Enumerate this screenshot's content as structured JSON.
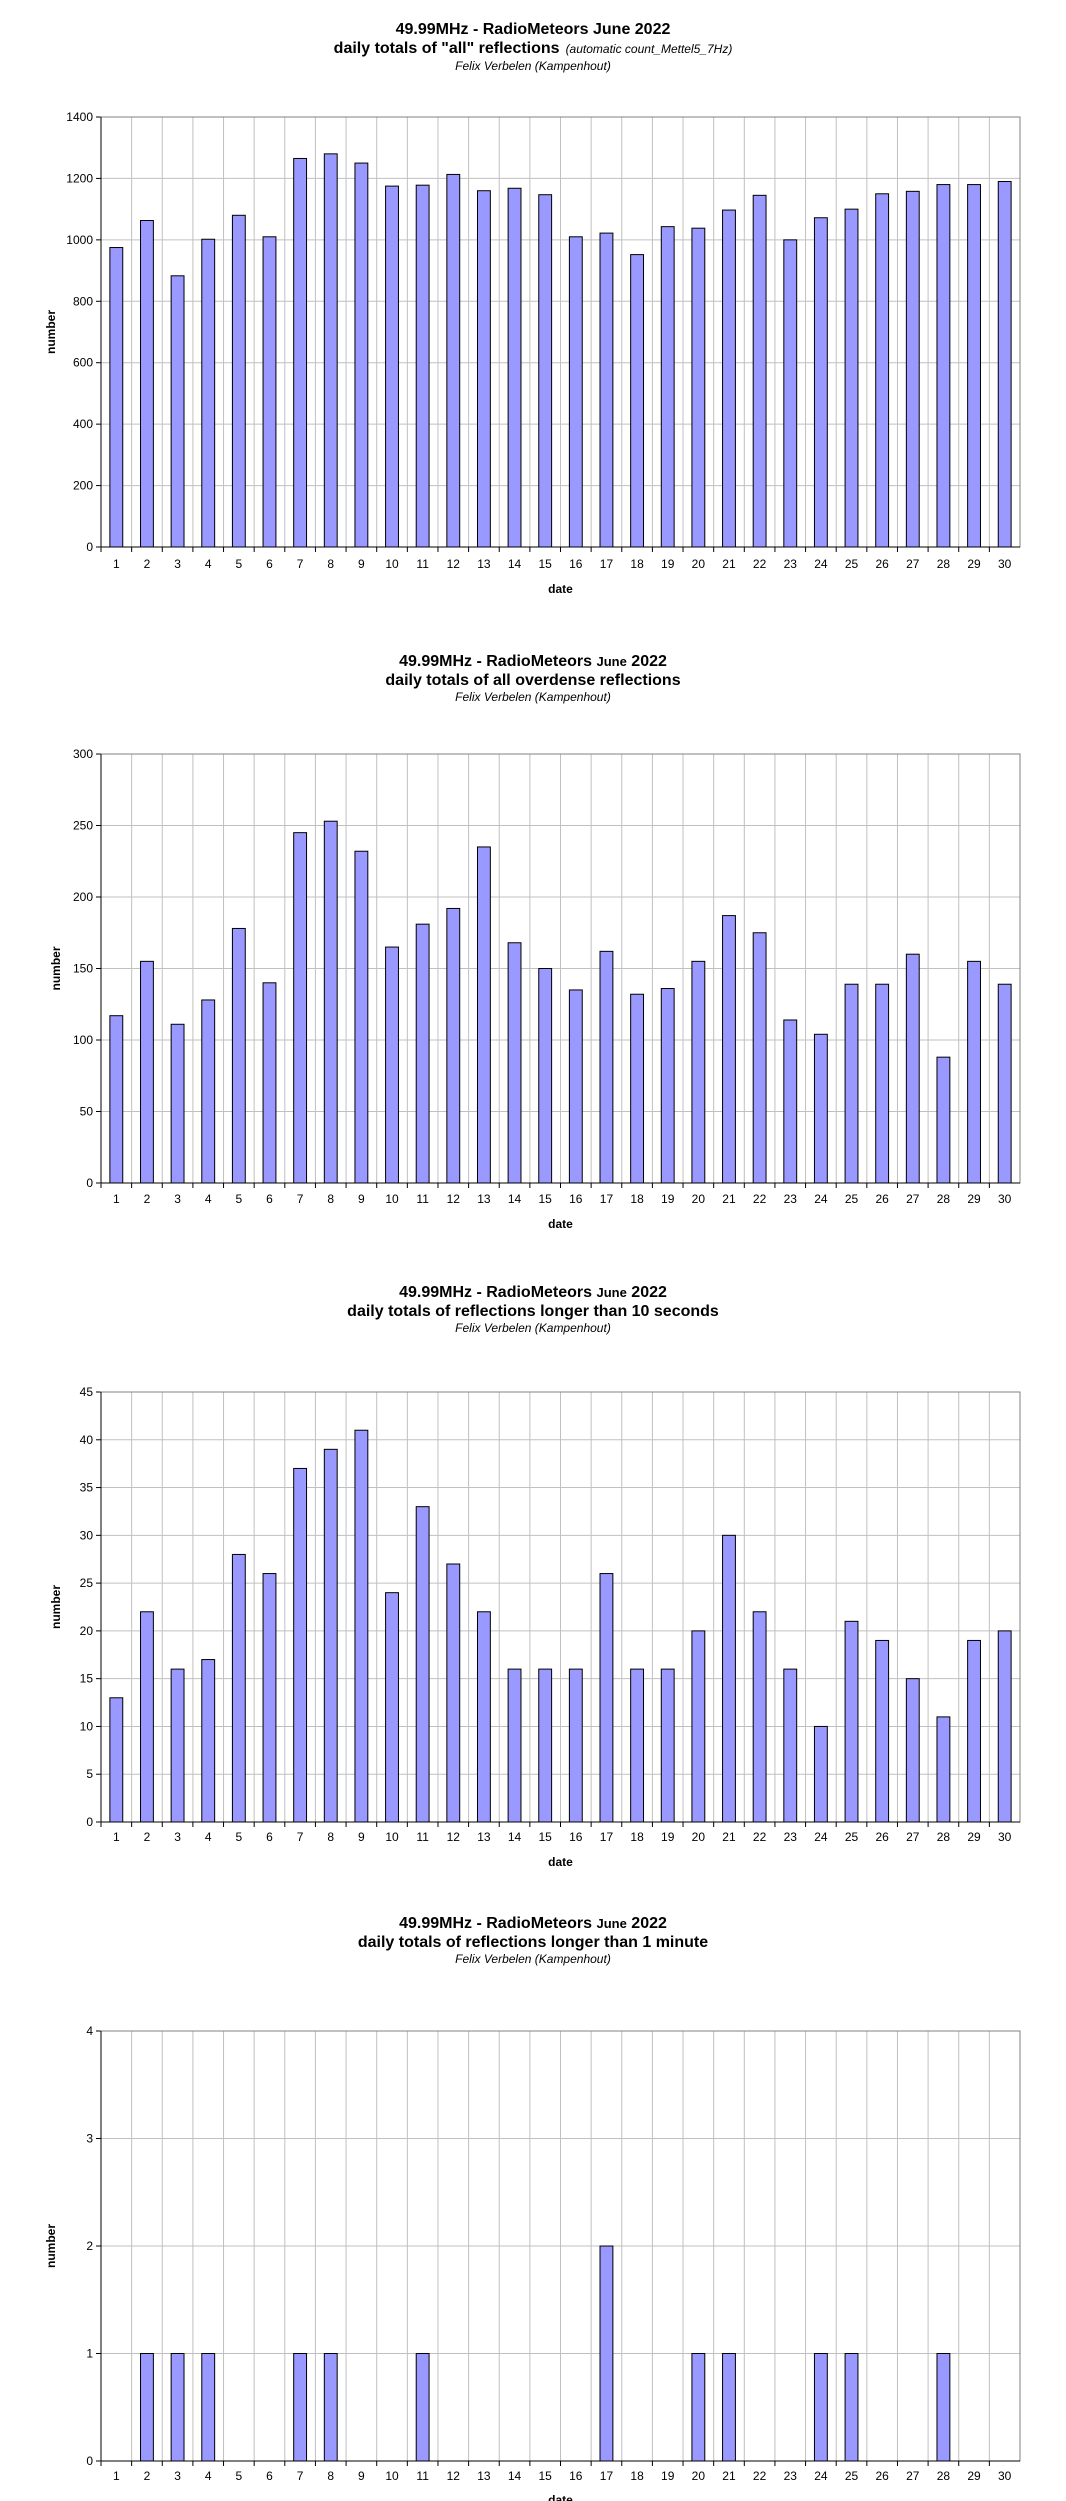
{
  "colors": {
    "bar": "#9999ff",
    "bar_stroke": "#000000",
    "grid": "#c0c0c0",
    "frame": "#808080"
  },
  "chart_data": [
    {
      "type": "bar",
      "title_line1": "49.99MHz - RadioMeteors June 2022",
      "title_line2": "daily totals of \"all\" reflections",
      "title_note": "(automatic count_Mettel5_7Hz)",
      "subtitle": "Felix Verbelen (Kampenhout)",
      "xlabel": "date",
      "ylabel": "number",
      "ylim": [
        0,
        1400
      ],
      "yticks": [
        0,
        200,
        400,
        600,
        800,
        1000,
        1200,
        1400
      ],
      "grid": true,
      "categories": [
        "1",
        "2",
        "3",
        "4",
        "5",
        "6",
        "7",
        "8",
        "9",
        "10",
        "11",
        "12",
        "13",
        "14",
        "15",
        "16",
        "17",
        "18",
        "19",
        "20",
        "21",
        "22",
        "23",
        "24",
        "25",
        "26",
        "27",
        "28",
        "29",
        "30"
      ],
      "values": [
        975,
        1063,
        883,
        1002,
        1080,
        1010,
        1265,
        1280,
        1250,
        1175,
        1178,
        1213,
        1160,
        1168,
        1147,
        1010,
        1022,
        952,
        1043,
        1038,
        1097,
        1145,
        1000,
        1072,
        1100,
        1150,
        1158,
        1180,
        1180,
        1190
      ]
    },
    {
      "type": "bar",
      "title_line1_a": "49.99MHz - RadioMeteors",
      "title_line1_b": "June",
      "title_line1_c": "2022",
      "title_line2": "daily totals of all overdense reflections",
      "subtitle": "Felix Verbelen (Kampenhout)",
      "xlabel": "date",
      "ylabel": "number",
      "ylim": [
        0,
        300
      ],
      "yticks": [
        0,
        50,
        100,
        150,
        200,
        250,
        300
      ],
      "grid": true,
      "categories": [
        "1",
        "2",
        "3",
        "4",
        "5",
        "6",
        "7",
        "8",
        "9",
        "10",
        "11",
        "12",
        "13",
        "14",
        "15",
        "16",
        "17",
        "18",
        "19",
        "20",
        "21",
        "22",
        "23",
        "24",
        "25",
        "26",
        "27",
        "28",
        "29",
        "30"
      ],
      "values": [
        117,
        155,
        111,
        128,
        178,
        140,
        245,
        253,
        232,
        165,
        181,
        192,
        235,
        168,
        150,
        135,
        162,
        132,
        136,
        155,
        187,
        175,
        114,
        104,
        139,
        139,
        160,
        88,
        155,
        139
      ]
    },
    {
      "type": "bar",
      "title_line1_a": "49.99MHz - RadioMeteors",
      "title_line1_b": "June",
      "title_line1_c": "2022",
      "title_line2": "daily totals of reflections longer than 10 seconds",
      "subtitle": "Felix Verbelen (Kampenhout)",
      "xlabel": "date",
      "ylabel": "number",
      "ylim": [
        0,
        45
      ],
      "yticks": [
        0,
        5,
        10,
        15,
        20,
        25,
        30,
        35,
        40,
        45
      ],
      "grid": true,
      "categories": [
        "1",
        "2",
        "3",
        "4",
        "5",
        "6",
        "7",
        "8",
        "9",
        "10",
        "11",
        "12",
        "13",
        "14",
        "15",
        "16",
        "17",
        "18",
        "19",
        "20",
        "21",
        "22",
        "23",
        "24",
        "25",
        "26",
        "27",
        "28",
        "29",
        "30"
      ],
      "values": [
        13,
        22,
        16,
        17,
        28,
        26,
        37,
        39,
        41,
        24,
        33,
        27,
        22,
        16,
        16,
        16,
        26,
        16,
        16,
        20,
        30,
        22,
        16,
        10,
        21,
        19,
        15,
        11,
        19,
        20
      ]
    },
    {
      "type": "bar",
      "title_line1_a": "49.99MHz - RadioMeteors",
      "title_line1_b": "June",
      "title_line1_c": "2022",
      "title_line2": "daily totals of reflections longer than 1 minute",
      "subtitle": "Felix Verbelen (Kampenhout)",
      "xlabel": "date",
      "ylabel": "number",
      "ylim": [
        0,
        4
      ],
      "yticks": [
        0,
        1,
        2,
        3,
        4
      ],
      "grid": true,
      "categories": [
        "1",
        "2",
        "3",
        "4",
        "5",
        "6",
        "7",
        "8",
        "9",
        "10",
        "11",
        "12",
        "13",
        "14",
        "15",
        "16",
        "17",
        "18",
        "19",
        "20",
        "21",
        "22",
        "23",
        "24",
        "25",
        "26",
        "27",
        "28",
        "29",
        "30"
      ],
      "values": [
        0,
        1,
        1,
        1,
        0,
        0,
        1,
        1,
        0,
        0,
        1,
        0,
        0,
        0,
        0,
        0,
        2,
        0,
        0,
        1,
        1,
        0,
        0,
        1,
        1,
        0,
        0,
        1,
        0,
        0
      ]
    }
  ]
}
